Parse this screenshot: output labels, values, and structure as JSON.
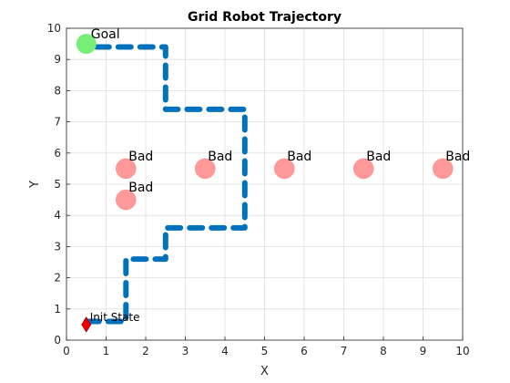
{
  "chart_data": {
    "type": "scatter",
    "title": "Grid Robot Trajectory",
    "xlabel": "X",
    "ylabel": "Y",
    "xlim": [
      0,
      10
    ],
    "ylim": [
      0,
      10
    ],
    "xticks": [
      "0",
      "1",
      "2",
      "3",
      "4",
      "5",
      "6",
      "7",
      "8",
      "9",
      "10"
    ],
    "yticks": [
      "0",
      "1",
      "2",
      "3",
      "4",
      "5",
      "6",
      "7",
      "8",
      "9",
      "10"
    ],
    "grid": true,
    "trajectory": {
      "x": [
        0.5,
        1.5,
        1.5,
        2.5,
        2.5,
        4.5,
        4.5,
        2.5,
        2.5,
        0.5
      ],
      "y": [
        0.6,
        0.6,
        2.6,
        2.6,
        3.6,
        3.6,
        7.4,
        7.4,
        9.4,
        9.4
      ],
      "color": "#0072bd",
      "style": "dashed"
    },
    "goal": {
      "label": "Goal",
      "x": 0.5,
      "y": 9.5,
      "color": "#77ee77"
    },
    "start": {
      "label": "Init State",
      "x": 0.5,
      "y": 0.5,
      "color": "#ee0000"
    },
    "bad_states": [
      {
        "label": "Bad",
        "x": 1.5,
        "y": 5.5
      },
      {
        "label": "Bad",
        "x": 1.5,
        "y": 4.5
      },
      {
        "label": "Bad",
        "x": 3.5,
        "y": 5.5
      },
      {
        "label": "Bad",
        "x": 5.5,
        "y": 5.5
      },
      {
        "label": "Bad",
        "x": 7.5,
        "y": 5.5
      },
      {
        "label": "Bad",
        "x": 9.5,
        "y": 5.5
      }
    ],
    "bad_color": "#ff9999"
  }
}
